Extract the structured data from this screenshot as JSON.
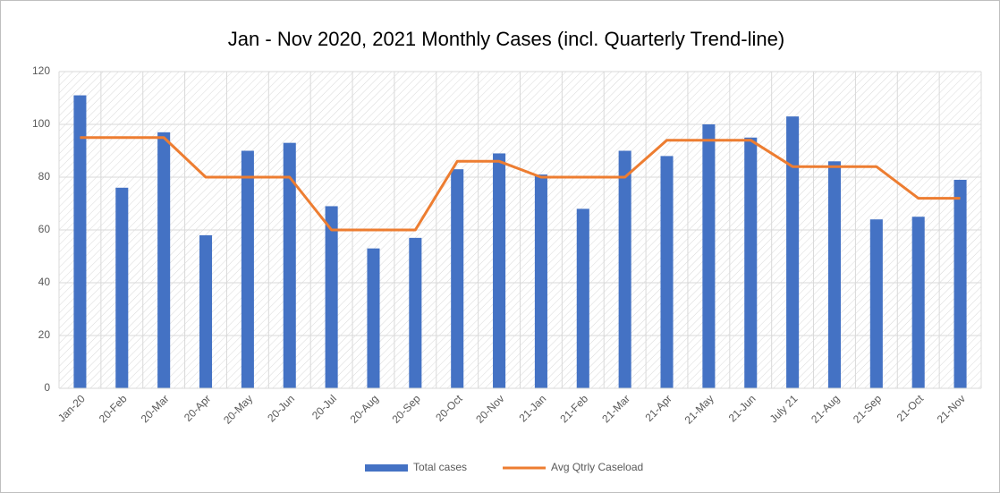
{
  "chart_data": {
    "type": "bar",
    "title": "Jan - Nov 2020, 2021 Monthly Cases (incl. Quarterly Trend-line)",
    "categories": [
      "Jan-20",
      "20-Feb",
      "20-Mar",
      "20-Apr",
      "20-May",
      "20-Jun",
      "20-Jul",
      "20-Aug",
      "20-Sep",
      "20-Oct",
      "20-Nov",
      "21-Jan",
      "21-Feb",
      "21-Mar",
      "21-Apr",
      "21-May",
      "21-Jun",
      "July 21",
      "21-Aug",
      "21-Sep",
      "21-Oct",
      "21-Nov"
    ],
    "series": [
      {
        "name": "Total cases",
        "type": "bar",
        "color": "#4472c4",
        "values": [
          111,
          76,
          97,
          58,
          90,
          93,
          69,
          53,
          57,
          83,
          89,
          81,
          68,
          90,
          88,
          100,
          95,
          103,
          86,
          64,
          65,
          79
        ]
      },
      {
        "name": "Avg Qtrly Caseload",
        "type": "line",
        "color": "#ed7d31",
        "values": [
          95,
          95,
          95,
          80,
          80,
          80,
          60,
          60,
          60,
          86,
          86,
          80,
          80,
          80,
          94,
          94,
          94,
          84,
          84,
          84,
          72,
          72
        ]
      }
    ],
    "ylim": [
      0,
      120
    ],
    "yticks": [
      0,
      20,
      40,
      60,
      80,
      100,
      120
    ],
    "grid": true,
    "legend": "bottom"
  }
}
